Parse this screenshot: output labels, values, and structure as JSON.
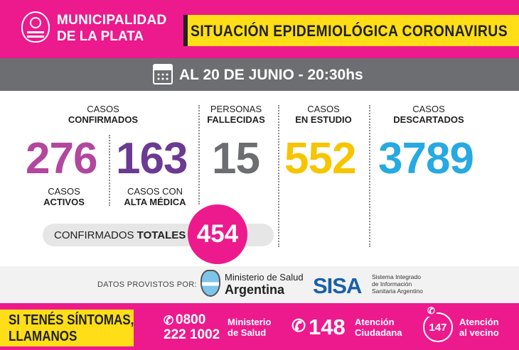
{
  "header": {
    "muni_line1": "MUNICIPALIDAD",
    "muni_line2_prefix": "DE ",
    "muni_line2_bold": "LA PLATA",
    "title": "SITUACIÓN EPIDEMIOLÓGICA CORONAVIRUS",
    "logo_icon": "city-seal-icon"
  },
  "date_bar": {
    "icon": "calendar-icon",
    "text": "AL 20 DE JUNIO - 20:30hs"
  },
  "confirmed": {
    "label_1": "CASOS",
    "label_2": "CONFIRMADOS",
    "active": {
      "value": "276",
      "label_1": "CASOS",
      "label_2": "ACTIVOS",
      "color": "#b2479f"
    },
    "recovered": {
      "value": "163",
      "label_1": "CASOS CON",
      "label_2": "ALTA MÉDICA",
      "color": "#6b3a93"
    }
  },
  "deceased": {
    "label_1": "PERSONAS",
    "label_2": "FALLECIDAS",
    "value": "15",
    "color": "#6d6e71"
  },
  "under_study": {
    "label_1": "CASOS",
    "label_2": "EN ESTUDIO",
    "value": "552",
    "color": "#f6c500"
  },
  "discarded": {
    "label_1": "CASOS",
    "label_2": "DESCARTADOS",
    "value": "3789",
    "color": "#27a9e1"
  },
  "totals": {
    "label_normal": "CONFIRMADOS ",
    "label_bold": "TOTALES",
    "value": "454"
  },
  "providers": {
    "label": "DATOS PROVISTOS POR:",
    "ministerio_line1": "Ministerio de Salud",
    "ministerio_line2": "Argentina",
    "sisa_logo": "SISA",
    "sisa_line1": "Sistema Integrado",
    "sisa_line2": "de Información",
    "sisa_line3": "Sanitaria Argentino"
  },
  "footer": {
    "call_line1": "SI TENÉS SÍNTOMAS,",
    "call_line2": "LLAMANOS",
    "phone1_line1": "0800",
    "phone1_line2": "222 1002",
    "phone1_desc1": "Ministerio",
    "phone1_desc2": "de Salud",
    "phone2": "148",
    "phone2_desc1": "Atención",
    "phone2_desc2": "Ciudadana",
    "phone3": "147",
    "phone3_desc1": "Atención",
    "phone3_desc2": "al vecino"
  }
}
